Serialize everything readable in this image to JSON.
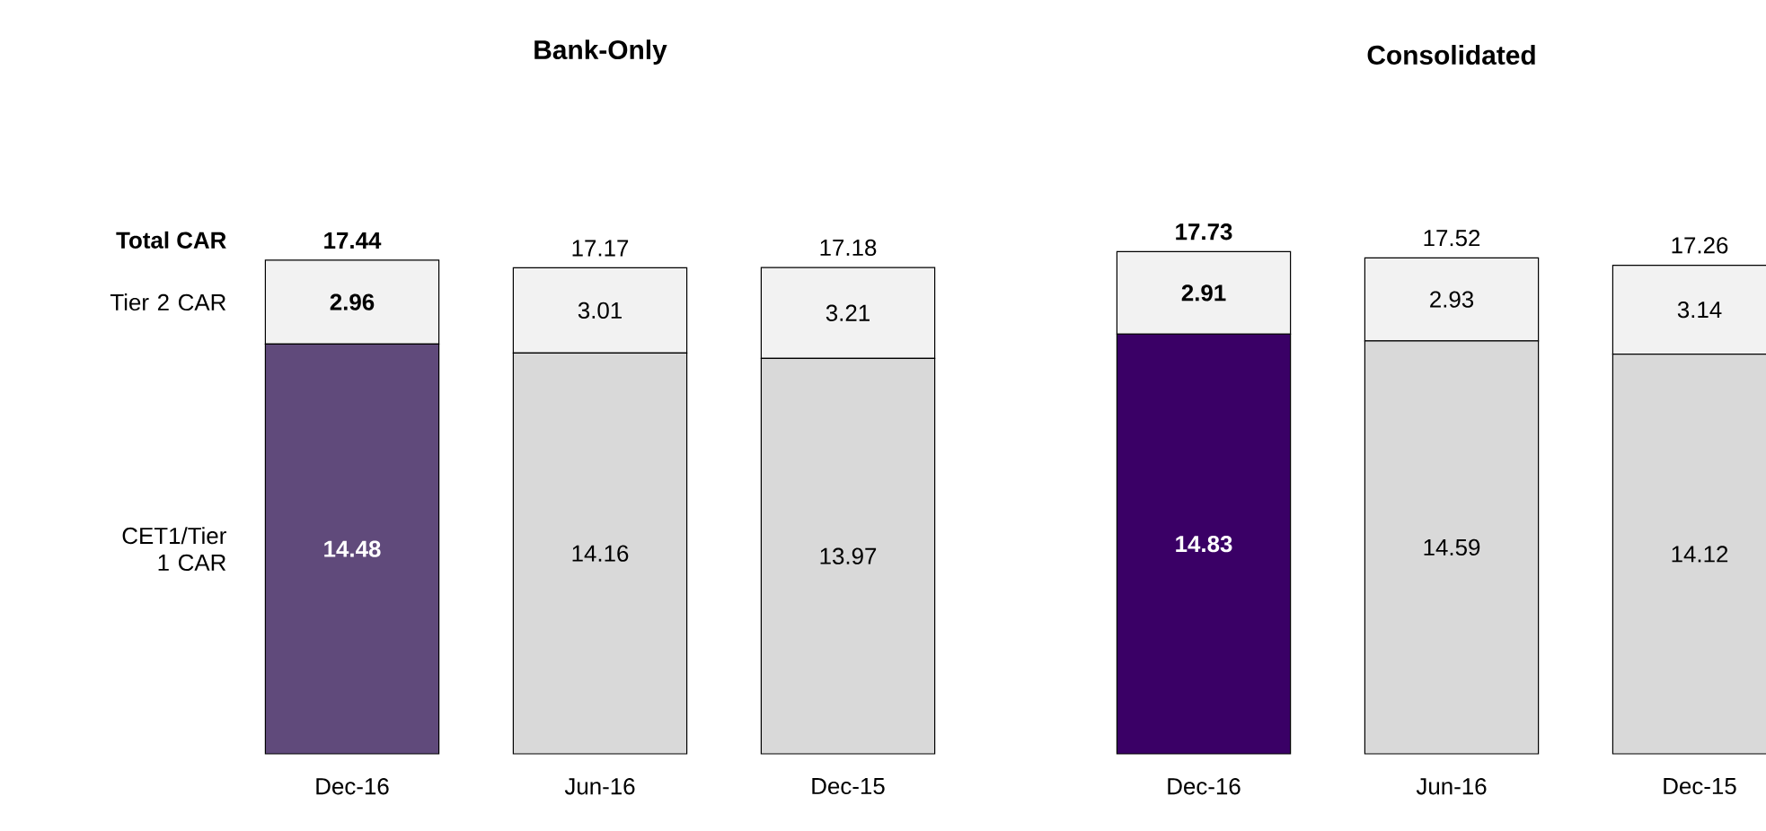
{
  "chart_data": [
    {
      "type": "bar",
      "title": "Bank-Only",
      "stacked": true,
      "categories": [
        "Dec-16",
        "Jun-16",
        "Dec-15"
      ],
      "series": [
        {
          "name": "CET1/Tier 1 CAR",
          "colors": [
            "#604a7b",
            "#d9d9d9",
            "#d9d9d9"
          ],
          "values": [
            14.48,
            14.16,
            13.97
          ]
        },
        {
          "name": "Tier 2 CAR",
          "color": "#f2f2f2",
          "values": [
            2.96,
            3.01,
            3.21
          ]
        }
      ],
      "data_labels": true,
      "totals": [
        "17.44",
        "17.17",
        "17.18"
      ],
      "annotations": [
        "Total CAR"
      ]
    },
    {
      "type": "bar",
      "title": "Consolidated",
      "stacked": true,
      "categories": [
        "Dec-16",
        "Jun-16",
        "Dec-15"
      ],
      "series": [
        {
          "colors": [
            "#3a0066",
            "#d9d9d9",
            "#d9d9d9"
          ],
          "values": [
            14.83,
            14.59,
            14.12
          ]
        },
        {
          "color": "#f2f2f2",
          "values": [
            2.91,
            2.93,
            3.14
          ]
        }
      ],
      "data_labels": true,
      "totals": [
        "17.73",
        "17.52",
        "17.26"
      ]
    }
  ]
}
